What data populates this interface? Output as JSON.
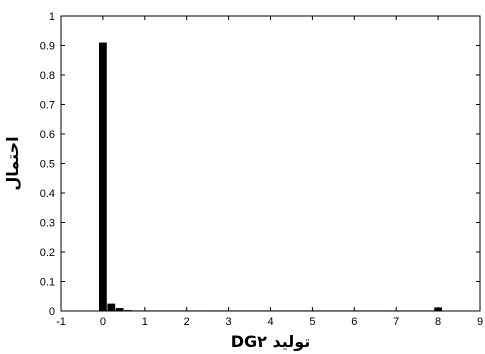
{
  "chart_data": {
    "type": "bar",
    "title": "",
    "xlabel": "تولید DG۲",
    "ylabel": "احتمال",
    "xlim": [
      -1,
      9
    ],
    "ylim": [
      0,
      1
    ],
    "grid": false,
    "x_ticks": [
      -1,
      0,
      1,
      2,
      3,
      4,
      5,
      6,
      7,
      8,
      9
    ],
    "y_ticks": [
      0,
      0.1,
      0.2,
      0.3,
      0.4,
      0.5,
      0.6,
      0.7,
      0.8,
      0.9,
      1
    ],
    "bar_width": 0.2,
    "bar_color": "#000000",
    "x": [
      0,
      0.2,
      0.4,
      0.6,
      0.8,
      1.0,
      1.2,
      1.4,
      1.6,
      1.8,
      2.0,
      2.2,
      2.4,
      2.6,
      2.8,
      3.0,
      3.2,
      3.4,
      3.6,
      3.8,
      4.0,
      4.2,
      4.4,
      4.6,
      4.8,
      5.0,
      5.2,
      5.4,
      5.6,
      5.8,
      6.0,
      6.2,
      6.4,
      6.6,
      6.8,
      7.0,
      7.2,
      7.4,
      7.6,
      7.8,
      8.0
    ],
    "values": [
      0.91,
      0.025,
      0.01,
      0.003,
      0.002,
      0.002,
      0.001,
      0.001,
      0.001,
      0.001,
      0.002,
      0.001,
      0.001,
      0.001,
      0.001,
      0.002,
      0.001,
      0.001,
      0.001,
      0.001,
      0.002,
      0.001,
      0.001,
      0.001,
      0.001,
      0.002,
      0.001,
      0.001,
      0.001,
      0.001,
      0.002,
      0.001,
      0.001,
      0.001,
      0.001,
      0.002,
      0.001,
      0.001,
      0.001,
      0.001,
      0.012
    ]
  }
}
